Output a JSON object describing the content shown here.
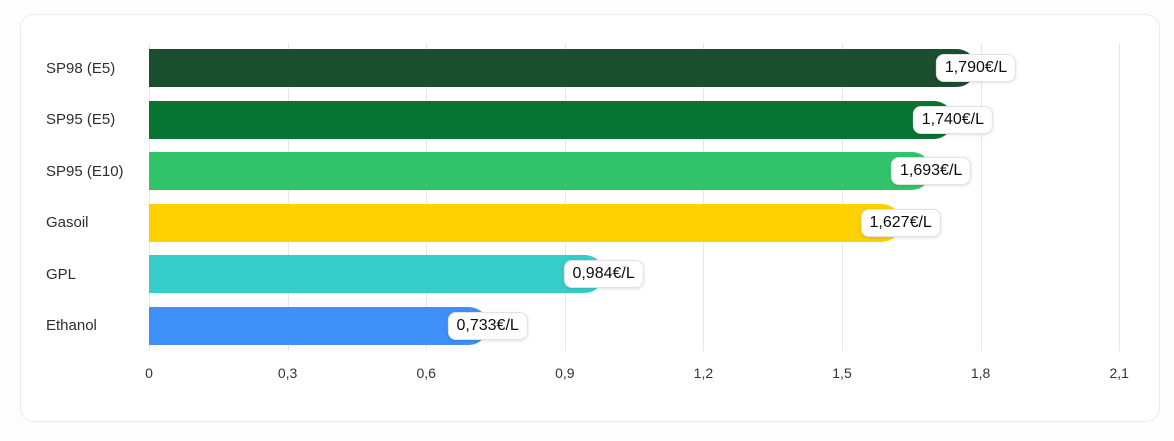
{
  "chart_data": {
    "type": "bar",
    "orientation": "horizontal",
    "unit": "€/L",
    "categories": [
      "SP98 (E5)",
      "SP95 (E5)",
      "SP95 (E10)",
      "Gasoil",
      "GPL",
      "Ethanol"
    ],
    "values": [
      1.79,
      1.74,
      1.693,
      1.627,
      0.984,
      0.733
    ],
    "value_labels": [
      "1,790€/L",
      "1,740€/L",
      "1,693€/L",
      "1,627€/L",
      "0,984€/L",
      "0,733€/L"
    ],
    "bar_colors": [
      "#1A4E2E",
      "#087434",
      "#32C46B",
      "#FFD100",
      "#36CCC8",
      "#3E8FF7"
    ],
    "x_ticks": [
      {
        "value": 0,
        "label": "0"
      },
      {
        "value": 0.3,
        "label": "0,3"
      },
      {
        "value": 0.6,
        "label": "0,6"
      },
      {
        "value": 0.9,
        "label": "0,9"
      },
      {
        "value": 1.2,
        "label": "1,2"
      },
      {
        "value": 1.5,
        "label": "1,5"
      },
      {
        "value": 1.8,
        "label": "1,8"
      },
      {
        "value": 2.1,
        "label": "2,1"
      }
    ],
    "xlim": [
      0,
      2.1
    ],
    "grid": "vertical-only",
    "legend": "none",
    "title": ""
  },
  "colors": {
    "grid": "#e6e7e9",
    "card_background": "#ffffff",
    "card_border": "#ebebee",
    "axis_text": "#333333",
    "category_text": "#2e2e2e",
    "badge_background": "#ffffff",
    "badge_border": "#e2e2e5",
    "badge_text": "#0d0d0d"
  }
}
